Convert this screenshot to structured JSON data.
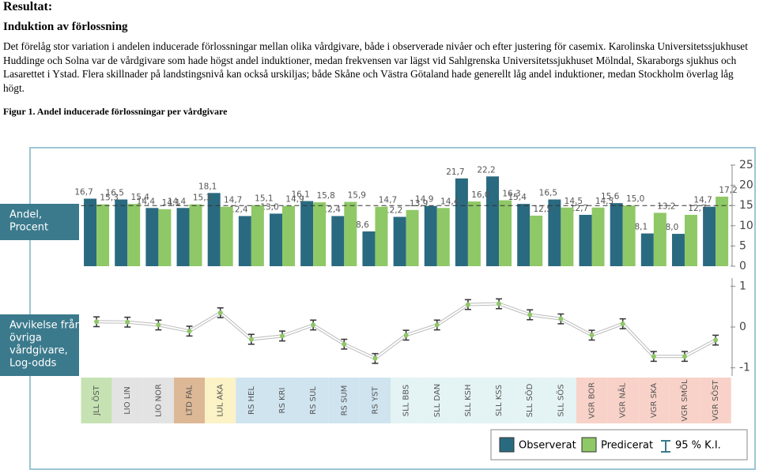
{
  "document": {
    "heading": "Resultat:",
    "subheading": "Induktion av förlossning",
    "paragraph": "Det förelåg stor variation i andelen inducerade förlossningar mellan olika vårdgivare, både i observerade nivåer och efter justering för casemix. Karolinska Universitetssjukhuset Huddinge och Solna var de vårdgivare som hade högst andel induktioner, medan frekvensen var lägst vid Sahlgrenska Universitetssjukhuset Mölndal, Skaraborgs sjukhus och Lasarettet i Ystad. Flera skillnader på landstingsnivå kan också urskiljas; både Skåne och Västra Götaland hade generellt låg andel induktioner, medan Stockholm överlag låg högt.",
    "caption": "Figur 1. Andel inducerade förlossningar per vårdgivare"
  },
  "chart_data": [
    {
      "type": "bar",
      "panel_label": [
        "Andel,",
        "Procent"
      ],
      "categories": [
        "JLL ÖST",
        "LIO LIN",
        "LIO NOR",
        "LTD FAL",
        "LUL AKA",
        "RS HEL",
        "RS KRI",
        "RS SUL",
        "RS SUM",
        "RS YST",
        "SLL BBS",
        "SLL DAN",
        "SLL KSH",
        "SLL KSS",
        "SLL SÖD",
        "SLL SÖS",
        "VGR BOR",
        "VGR NÄL",
        "VGR SKA",
        "VGR SMÖL",
        "VGR SÖST"
      ],
      "category_colors": [
        "#c6e2b3",
        "#e3e3e3",
        "#e3e3e3",
        "#dcb896",
        "#fbf2c6",
        "#cfe4ef",
        "#cfe4ef",
        "#cfe4ef",
        "#cfe4ef",
        "#cfe4ef",
        "#e4f3f4",
        "#e4f3f4",
        "#e4f3f4",
        "#e4f3f4",
        "#e4f3f4",
        "#e4f3f4",
        "#f8d2c8",
        "#f8d2c8",
        "#f8d2c8",
        "#f8d2c8",
        "#f8d2c8"
      ],
      "series": [
        {
          "name": "Observerat",
          "color": "#2a6a80",
          "values": [
            16.7,
            16.5,
            14.4,
            14.4,
            18.1,
            12.4,
            13.0,
            16.1,
            12.4,
            8.6,
            12.2,
            14.9,
            21.7,
            22.2,
            15.4,
            16.5,
            12.7,
            15.6,
            8.1,
            8.0,
            14.7
          ],
          "value_labels": [
            "16,7",
            "16,5",
            "14,4",
            "14,4",
            "18,1",
            "12,4",
            "13,0",
            "16,1",
            "12,4",
            "8,6",
            "12,2",
            "14,9",
            "21,7",
            "22,2",
            "15,4",
            "16,5",
            "12,7",
            "15,6",
            "8,1",
            "8,0",
            "14,7"
          ]
        },
        {
          "name": "Predicerat",
          "color": "#8fc866",
          "values": [
            15.3,
            15.4,
            14.1,
            15.3,
            14.7,
            15.1,
            14.9,
            15.8,
            15.9,
            14.7,
            13.9,
            14.4,
            16.0,
            16.3,
            12.5,
            14.5,
            14.5,
            15.0,
            13.2,
            12.7,
            17.2
          ],
          "value_labels": [
            "15,3",
            "15,4",
            "14,1",
            "15,3",
            "14,7",
            "15,1",
            "14,9",
            "15,8",
            "15,9",
            "14,7",
            "13,9",
            "14,4",
            "16,0",
            "16,3",
            "12,5",
            "14,5",
            "14,5",
            "15,0",
            "13,2",
            "12,7",
            "17,2"
          ]
        }
      ],
      "reference_line": 15,
      "ylim": [
        0,
        25
      ],
      "yticks": [
        0,
        5,
        10,
        15,
        20,
        25
      ]
    },
    {
      "type": "errorpoint",
      "panel_label": [
        "Avvikelse från",
        "övriga",
        "vårdgivare,",
        "Log-odds"
      ],
      "ci_label": "95 % K.I.",
      "series": [
        {
          "color": "#8fc866",
          "values": [
            0.13,
            0.12,
            0.05,
            -0.1,
            0.35,
            -0.3,
            -0.22,
            0.05,
            -0.42,
            -0.77,
            -0.2,
            0.05,
            0.55,
            0.57,
            0.3,
            0.2,
            -0.2,
            0.08,
            -0.72,
            -0.72,
            -0.32
          ],
          "errors": [
            0.12,
            0.12,
            0.12,
            0.12,
            0.12,
            0.12,
            0.12,
            0.12,
            0.12,
            0.12,
            0.12,
            0.12,
            0.12,
            0.12,
            0.12,
            0.12,
            0.12,
            0.12,
            0.12,
            0.12,
            0.12
          ]
        }
      ],
      "ylim": [
        -1.2,
        1.2
      ],
      "yticks": [
        1,
        0,
        -1
      ]
    }
  ]
}
